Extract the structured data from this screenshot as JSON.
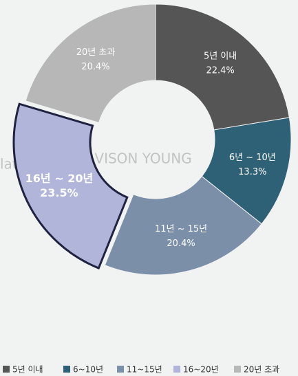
{
  "chart_data": {
    "type": "pie",
    "categories": [
      "5년 이내",
      "6~10년",
      "11~15년",
      "16~20년",
      "20년 초과"
    ],
    "segment_labels": [
      "5년 이내",
      "6년 ~ 10년",
      "11년 ~ 15년",
      "16년 ~ 20년",
      "20년 초과"
    ],
    "values": [
      22.4,
      13.3,
      20.4,
      23.5,
      20.4
    ],
    "value_labels": [
      "22.4%",
      "13.3%",
      "20.4%",
      "23.5%",
      "20.4%"
    ],
    "colors": [
      "#555555",
      "#2f6176",
      "#7b8fa8",
      "#b2b5da",
      "#b7b7b7"
    ],
    "highlight": 3,
    "donut": true,
    "legend": "bottom",
    "watermark": [
      "latePlus",
      "AVISON YOUNG"
    ]
  }
}
